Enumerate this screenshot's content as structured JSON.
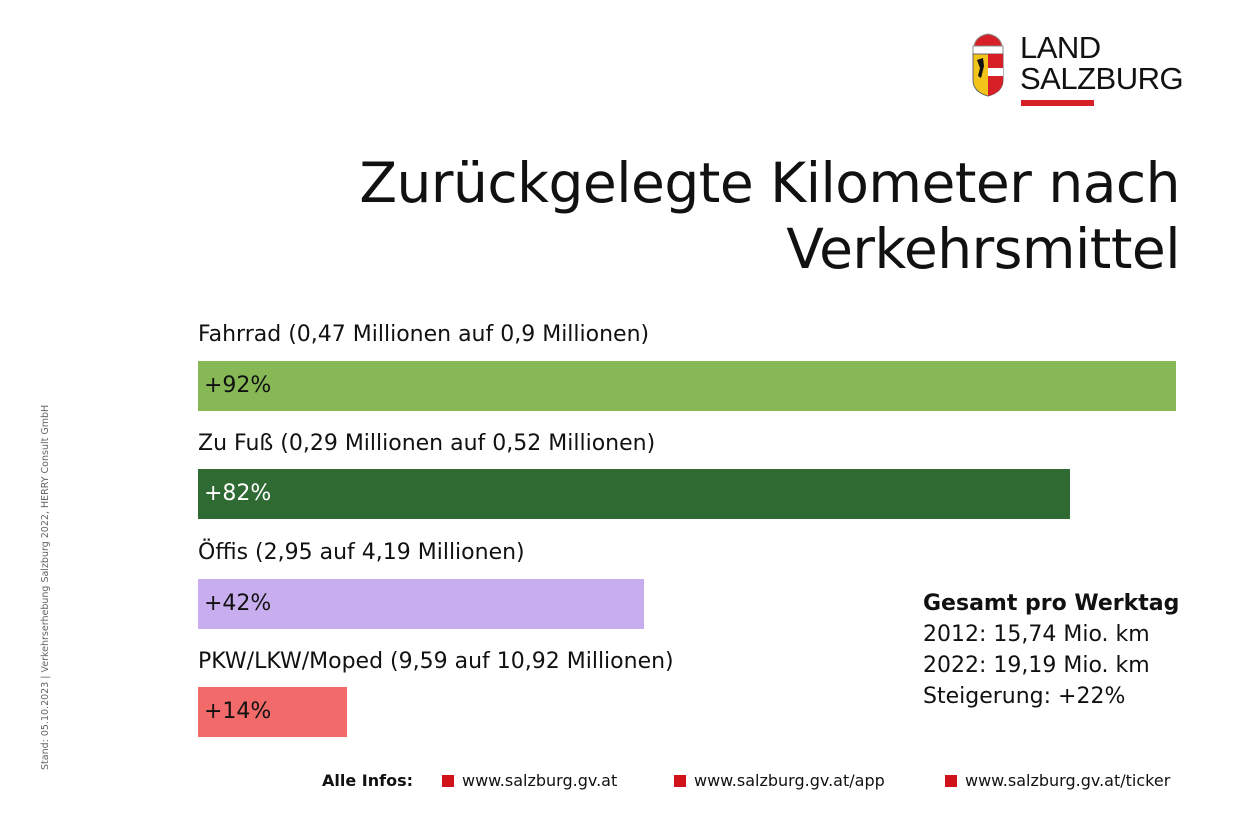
{
  "logo": {
    "line1": "LAND",
    "line2": "SALZBURG",
    "accent_color": "#d61f26"
  },
  "title": [
    "Zurückgelegte Kilometer nach",
    "Verkehrsmittel"
  ],
  "chart_data": {
    "type": "bar",
    "orientation": "horizontal",
    "title": "Zurückgelegte Kilometer nach Verkehrsmittel",
    "categories": [
      "Fahrrad (0,47 Millionen auf 0,9 Millionen)",
      "Zu Fuß (0,29 Millionen auf 0,52 Millionen)",
      "Öffis (2,95 auf 4,19 Millionen)",
      "PKW/LKW/Moped (9,59 auf 10,92 Millionen)"
    ],
    "values": [
      92,
      82,
      42,
      14
    ],
    "value_labels": [
      "+92%",
      "+82%",
      "+42%",
      "+14%"
    ],
    "colors": [
      "#86b856",
      "#306a33",
      "#c8aeee",
      "#f26a6a"
    ],
    "label_colors": [
      "#111111",
      "#ffffff",
      "#111111",
      "#111111"
    ],
    "unit": "%",
    "grid": false
  },
  "summary": {
    "heading": "Gesamt pro Werktag",
    "lines": [
      "2012: 15,74 Mio. km",
      "2022: 19,19 Mio. km",
      "Steigerung: +22%"
    ]
  },
  "side_note": "Stand: 05.10.2023  |  Verkehrserhebung Salzburg 2022, HERRY Consult GmbH",
  "footer": {
    "label": "Alle Infos:",
    "links": [
      "www.salzburg.gv.at",
      "www.salzburg.gv.at/app",
      "www.salzburg.gv.at/ticker"
    ],
    "bullet_color": "#d0121b"
  }
}
